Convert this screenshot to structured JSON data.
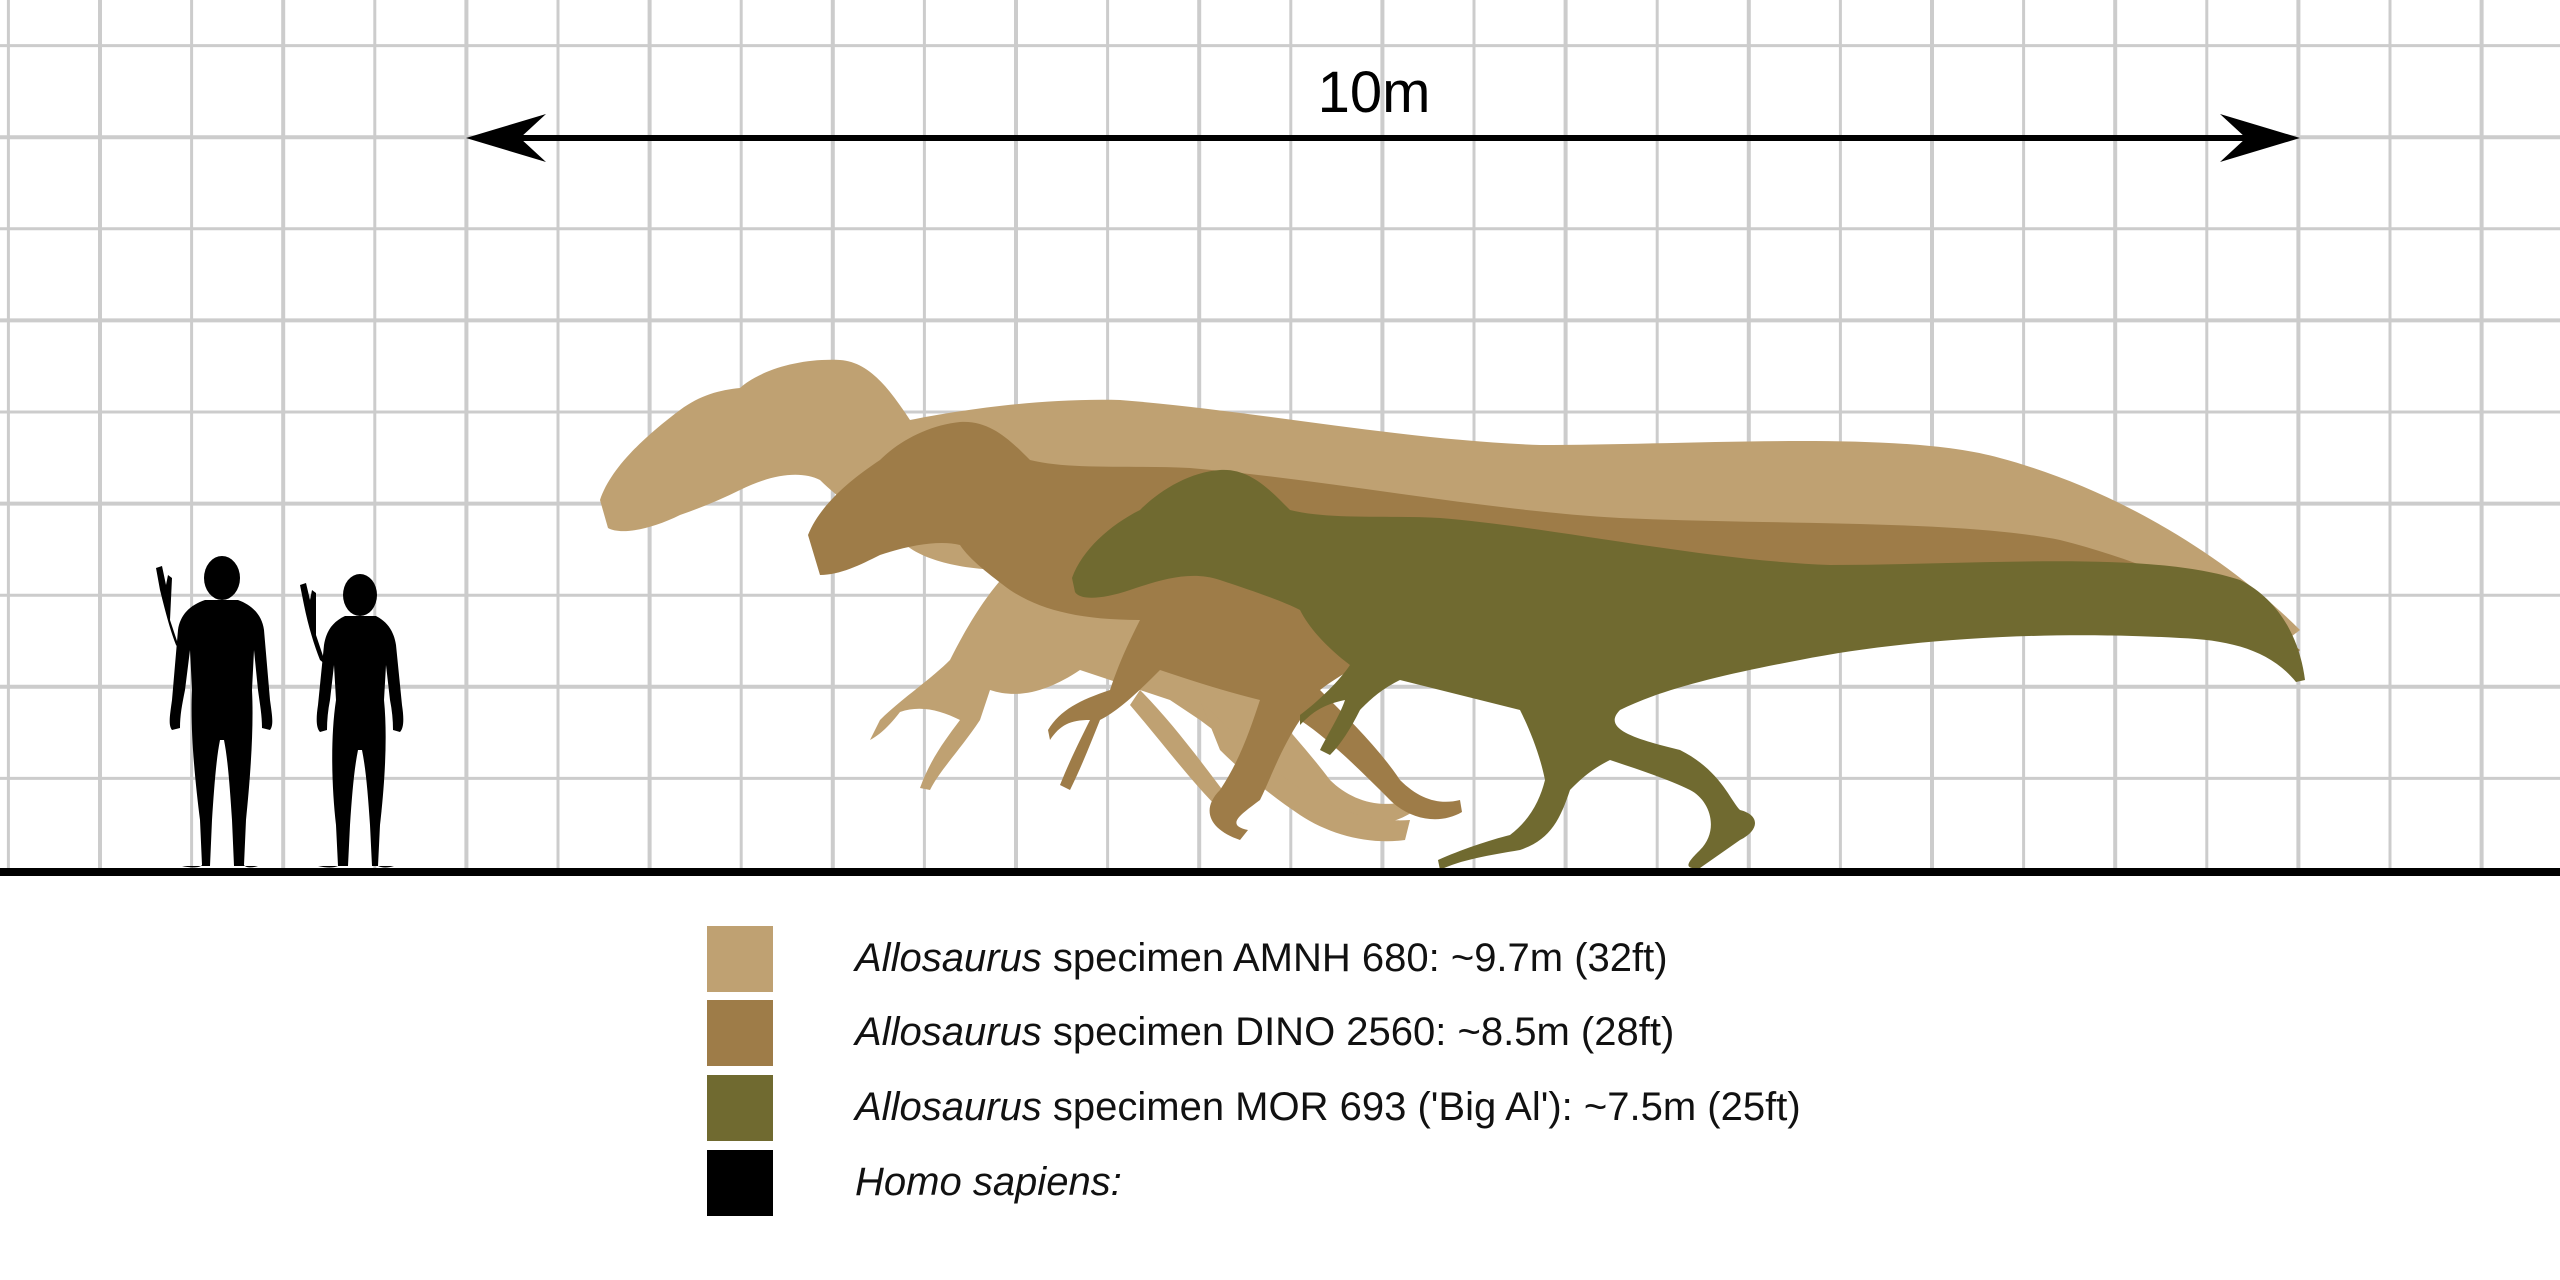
{
  "scale_bar": {
    "label": "10m"
  },
  "colors": {
    "grid": "#cccccc",
    "ground": "#000000",
    "background": "#ffffff",
    "amnh680": "#bfa172",
    "dino2560": "#9e7c48",
    "mor693": "#706a30",
    "human": "#000000"
  },
  "legend": [
    {
      "genus": "Allosaurus",
      "text": " specimen AMNH 680:  ~9.7m (32ft)",
      "color": "#bfa172"
    },
    {
      "genus": "Allosaurus",
      "text": " specimen DINO 2560:  ~8.5m (28ft)",
      "color": "#9e7c48"
    },
    {
      "genus": "Allosaurus",
      "text": " specimen MOR 693 ('Big Al'):  ~7.5m (25ft)",
      "color": "#706a30"
    },
    {
      "genus": "Homo sapiens:",
      "text": "",
      "color": "#000000"
    }
  ]
}
